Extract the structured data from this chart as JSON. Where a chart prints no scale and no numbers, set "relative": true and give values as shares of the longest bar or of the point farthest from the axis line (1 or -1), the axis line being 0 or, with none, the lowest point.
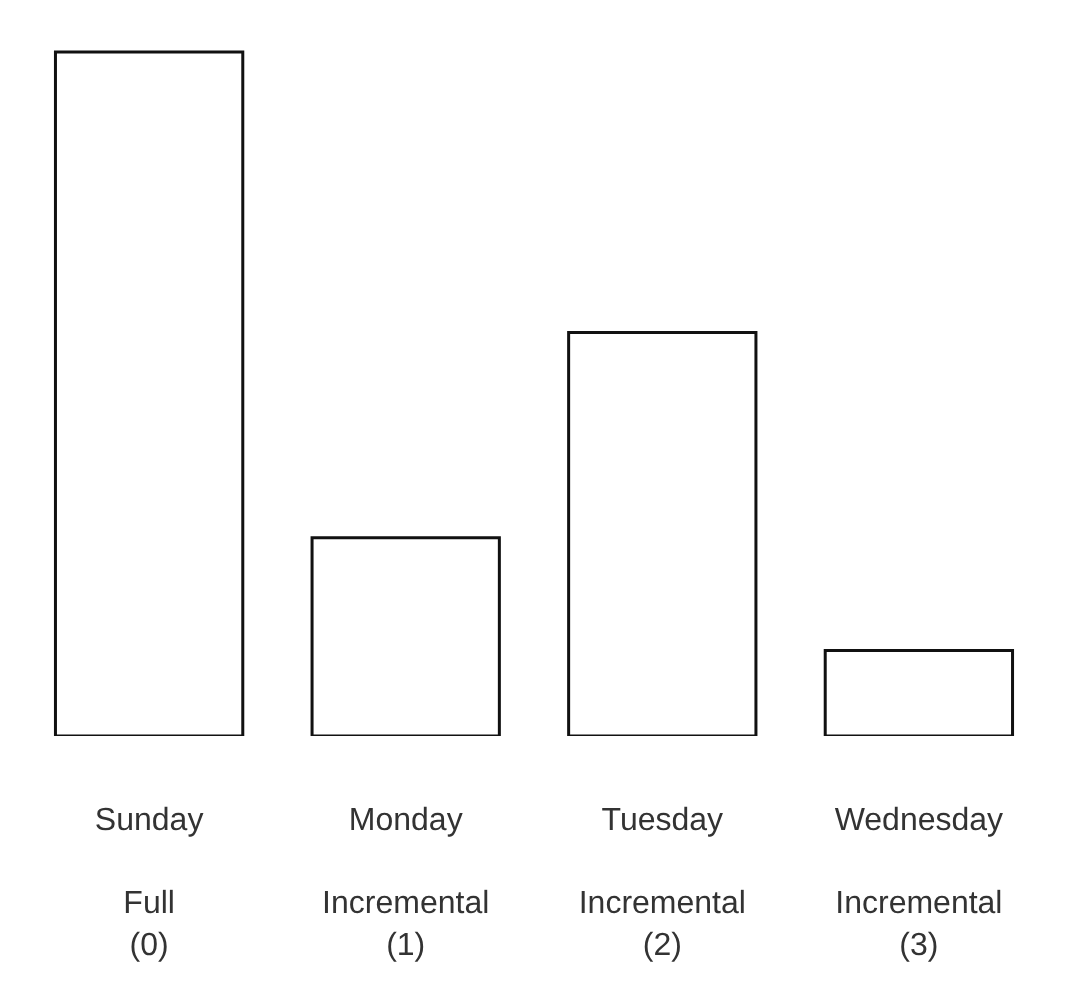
{
  "chart_data": {
    "type": "bar",
    "relative": true,
    "color": "#ffffff",
    "categories": [
      "Sunday\n\nFull\n(0)",
      "Monday\n\nIncremental\n(1)",
      "Tuesday\n\nIncremental\n(2)",
      "Wednesday\n\nIncremental\n(3)"
    ],
    "values": [
      1,
      0.29,
      0.59,
      0.125
    ]
  }
}
